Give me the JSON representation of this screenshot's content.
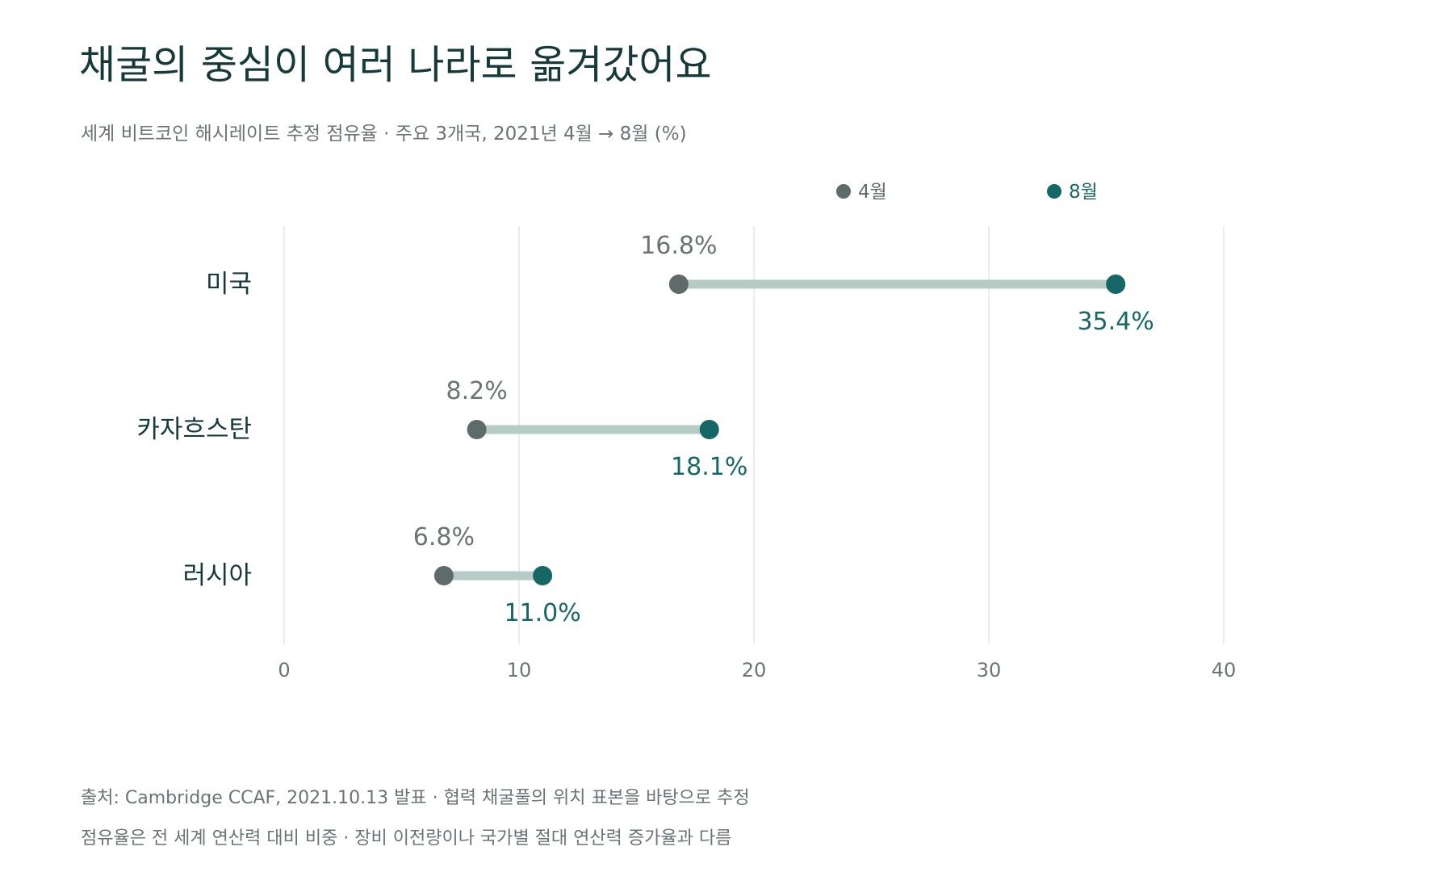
{
  "header": {
    "title": "채굴의 중심이 여러 나라로 옮겨갔어요",
    "subtitle": "세계 비트코인 해시레이트 추정 점유율 · 주요 3개국, 2021년 4월 → 8월 (%)"
  },
  "footer": {
    "source": "출처: Cambridge CCAF, 2021.10.13 발표 · 협력 채굴풀의 위치 표본을 바탕으로 추정",
    "note": "점유율은 전 세계 연산력 대비 비중 · 장비 이전량이나 국가별 절대 연산력 증가율과 다름"
  },
  "chart_data": {
    "type": "dumbbell",
    "categories": [
      "미국",
      "카자흐스탄",
      "러시아"
    ],
    "series": [
      {
        "name": "4월",
        "values": [
          16.8,
          8.2,
          6.8
        ],
        "color": "#5f6b6b"
      },
      {
        "name": "8월",
        "values": [
          35.4,
          18.1,
          11.0
        ],
        "color": "#166866"
      }
    ],
    "data_labels": {
      "4월": [
        "16.8%",
        "8.2%",
        "6.8%"
      ],
      "8월": [
        "35.4%",
        "18.1%",
        "11.0%"
      ]
    },
    "xlim": [
      0,
      40
    ],
    "xticks": [
      0,
      10,
      20,
      30,
      40
    ],
    "xlabel": "",
    "ylabel": "",
    "grid": "vertical",
    "legend_position": "top-right",
    "connector_color": "#b6cbc5"
  }
}
